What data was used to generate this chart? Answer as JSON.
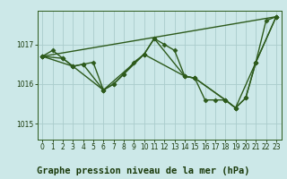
{
  "title": "Graphe pression niveau de la mer (hPa)",
  "background_color": "#cce8e8",
  "grid_color": "#aacccc",
  "line_color": "#2d5a1b",
  "text_color": "#1a3a0a",
  "xlim": [
    -0.5,
    23.5
  ],
  "ylim": [
    1014.6,
    1017.85
  ],
  "yticks": [
    1015,
    1016,
    1017
  ],
  "xticks": [
    0,
    1,
    2,
    3,
    4,
    5,
    6,
    7,
    8,
    9,
    10,
    11,
    12,
    13,
    14,
    15,
    16,
    17,
    18,
    19,
    20,
    21,
    22,
    23
  ],
  "line1": {
    "x": [
      0,
      1,
      2,
      3,
      4,
      5,
      6,
      7,
      8,
      9,
      10,
      11,
      12,
      13,
      14,
      15,
      16,
      17,
      18,
      19,
      20,
      21,
      22,
      23
    ],
    "y": [
      1016.7,
      1016.85,
      1016.65,
      1016.45,
      1016.5,
      1016.55,
      1015.85,
      1016.0,
      1016.25,
      1016.55,
      1016.75,
      1017.15,
      1017.0,
      1016.85,
      1016.2,
      1016.15,
      1015.6,
      1015.6,
      1015.6,
      1015.4,
      1015.65,
      1016.55,
      1017.6,
      1017.7
    ]
  },
  "line2": {
    "x": [
      0,
      2,
      3,
      4,
      6,
      7,
      8,
      10,
      14,
      15,
      18,
      19,
      20,
      21,
      23
    ],
    "y": [
      1016.7,
      1016.65,
      1016.45,
      1016.5,
      1015.85,
      1016.0,
      1016.25,
      1016.75,
      1016.2,
      1016.15,
      1015.6,
      1015.4,
      1015.65,
      1016.55,
      1017.7
    ]
  },
  "line3": {
    "x": [
      0,
      3,
      6,
      10,
      11,
      14,
      15,
      18,
      19,
      21,
      23
    ],
    "y": [
      1016.7,
      1016.45,
      1015.85,
      1016.75,
      1017.15,
      1016.2,
      1016.15,
      1015.6,
      1015.4,
      1016.55,
      1017.7
    ]
  },
  "line4": {
    "x": [
      0,
      23
    ],
    "y": [
      1016.7,
      1017.7
    ]
  },
  "marker_size": 2.5,
  "line_width": 1.0,
  "tick_fontsize": 5.5,
  "label_fontsize": 7.5
}
